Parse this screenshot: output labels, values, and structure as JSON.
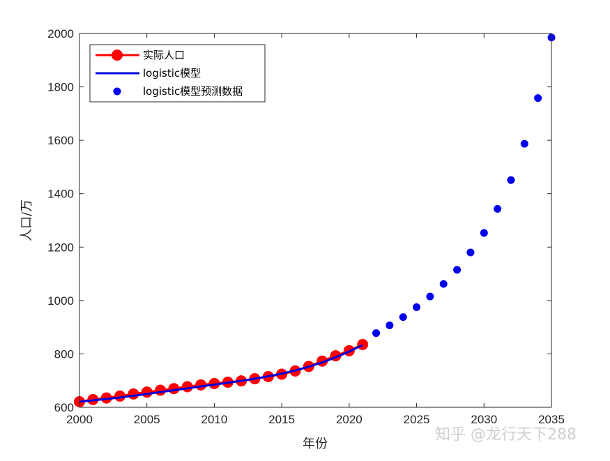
{
  "chart_data": {
    "type": "line",
    "xlabel": "年份",
    "ylabel": "人口/万",
    "xlim": [
      2000,
      2035
    ],
    "ylim": [
      600,
      2000
    ],
    "xticks": [
      2000,
      2005,
      2010,
      2015,
      2020,
      2025,
      2030,
      2035
    ],
    "yticks": [
      600,
      800,
      1000,
      1200,
      1400,
      1600,
      1800,
      2000
    ],
    "legend_position": "top-left",
    "series": [
      {
        "name": "实际人口",
        "style": "line-with-markers",
        "color": "#ff0000",
        "x": [
          2000,
          2001,
          2002,
          2003,
          2004,
          2005,
          2006,
          2007,
          2008,
          2009,
          2010,
          2011,
          2012,
          2013,
          2014,
          2015,
          2016,
          2017,
          2018,
          2019,
          2020,
          2021
        ],
        "values": [
          621,
          629,
          635,
          642,
          650,
          657,
          664,
          670,
          677,
          684,
          689,
          694,
          699,
          707,
          715,
          724,
          736,
          753,
          773,
          793,
          812,
          835
        ]
      },
      {
        "name": "logistic模型",
        "style": "line",
        "color": "#0000dd",
        "x": [
          2000,
          2001,
          2002,
          2003,
          2004,
          2005,
          2006,
          2007,
          2008,
          2009,
          2010,
          2011,
          2012,
          2013,
          2014,
          2015,
          2016,
          2017,
          2018,
          2019,
          2020,
          2021
        ],
        "values": [
          621,
          626,
          631,
          637,
          643,
          650,
          657,
          664,
          671,
          678,
          685,
          692,
          699,
          707,
          716,
          726,
          738,
          752,
          768,
          787,
          809,
          833
        ]
      },
      {
        "name": "logistic模型预测数据",
        "style": "markers",
        "color": "#0000ee",
        "x": [
          2022,
          2023,
          2024,
          2025,
          2026,
          2027,
          2028,
          2029,
          2030,
          2031,
          2032,
          2033,
          2034,
          2035
        ],
        "values": [
          878,
          907,
          938,
          975,
          1015,
          1062,
          1115,
          1180,
          1253,
          1343,
          1451,
          1587,
          1758,
          1985
        ]
      }
    ]
  },
  "watermark": "知乎 @龙行天下288"
}
